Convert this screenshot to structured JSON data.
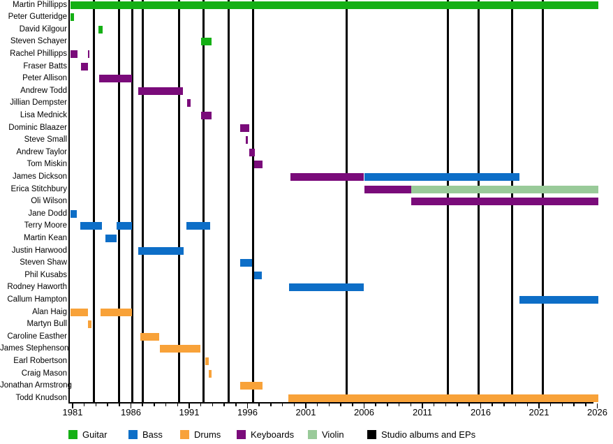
{
  "chart_data": {
    "type": "timeline",
    "description": "Band members timeline gantt chart",
    "x_axis": {
      "start": 1980.75,
      "end": 2026.2,
      "minor_tick_every_years": 1,
      "label_tick_every_years": 5,
      "label_years": [
        1981,
        1986,
        1991,
        1996,
        2001,
        2006,
        2011,
        2016,
        2021,
        2026
      ]
    },
    "legend": [
      {
        "id": "guitar",
        "label": "Guitar",
        "color": "#15b015"
      },
      {
        "id": "bass",
        "label": "Bass",
        "color": "#0d6ec7"
      },
      {
        "id": "drums",
        "label": "Drums",
        "color": "#f8a239"
      },
      {
        "id": "keyboards",
        "label": "Keyboards",
        "color": "#7a0b7a"
      },
      {
        "id": "violin",
        "label": "Violin",
        "color": "#99ca99"
      },
      {
        "id": "albums",
        "label": "Studio albums and EPs",
        "color": "#000000"
      }
    ],
    "album_release_lines": [
      1982.8,
      1985.0,
      1986.1,
      1987.0,
      1990.15,
      1992.25,
      1994.4,
      1996.45,
      2004.5,
      2013.2,
      2015.8,
      2018.7,
      2021.35
    ],
    "members": [
      {
        "name": "Martin Phillipps",
        "stints": [
          {
            "role": "guitar",
            "start": 1980.8,
            "end": 2026.1
          }
        ]
      },
      {
        "name": "Peter Gutteridge",
        "stints": [
          {
            "role": "guitar",
            "start": 1980.8,
            "end": 1981.1
          }
        ]
      },
      {
        "name": "David Kilgour",
        "stints": [
          {
            "role": "guitar",
            "start": 1983.2,
            "end": 1983.6
          }
        ]
      },
      {
        "name": "Steven Schayer",
        "stints": [
          {
            "role": "guitar",
            "start": 1992.0,
            "end": 1992.9
          }
        ]
      },
      {
        "name": "Rachel Phillipps",
        "stints": [
          {
            "role": "keyboards",
            "start": 1980.8,
            "end": 1981.4
          },
          {
            "role": "keyboards",
            "start": 1982.3,
            "end": 1982.45
          }
        ]
      },
      {
        "name": "Fraser Batts",
        "stints": [
          {
            "role": "keyboards",
            "start": 1981.7,
            "end": 1982.3
          }
        ]
      },
      {
        "name": "Peter Allison",
        "stints": [
          {
            "role": "keyboards",
            "start": 1983.3,
            "end": 1986.1
          }
        ]
      },
      {
        "name": "Andrew Todd",
        "stints": [
          {
            "role": "keyboards",
            "start": 1986.6,
            "end": 1990.45
          }
        ]
      },
      {
        "name": "Jillian Dempster",
        "stints": [
          {
            "role": "keyboards",
            "start": 1990.8,
            "end": 1991.1
          }
        ]
      },
      {
        "name": "Lisa Mednick",
        "stints": [
          {
            "role": "keyboards",
            "start": 1992.0,
            "end": 1992.9
          }
        ]
      },
      {
        "name": "Dominic Blaazer",
        "stints": [
          {
            "role": "keyboards",
            "start": 1995.4,
            "end": 1996.15
          }
        ]
      },
      {
        "name": "Steve Small",
        "stints": [
          {
            "role": "keyboards",
            "start": 1995.85,
            "end": 1996.05
          }
        ]
      },
      {
        "name": "Andrew Taylor",
        "stints": [
          {
            "role": "keyboards",
            "start": 1996.15,
            "end": 1996.6
          }
        ]
      },
      {
        "name": "Tom Miskin",
        "stints": [
          {
            "role": "keyboards",
            "start": 1996.55,
            "end": 1997.3
          }
        ]
      },
      {
        "name": "James Dickson",
        "stints": [
          {
            "role": "keyboards",
            "start": 1999.7,
            "end": 2006.0
          },
          {
            "role": "bass",
            "start": 2006.0,
            "end": 2019.3
          }
        ]
      },
      {
        "name": "Erica Stitchbury",
        "stints": [
          {
            "role": "keyboards",
            "start": 2006.0,
            "end": 2010.05
          },
          {
            "role": "violin",
            "start": 2010.05,
            "end": 2026.1
          }
        ]
      },
      {
        "name": "Oli Wilson",
        "stints": [
          {
            "role": "keyboards",
            "start": 2010.05,
            "end": 2026.1
          }
        ]
      },
      {
        "name": "Jane Dodd",
        "stints": [
          {
            "role": "bass",
            "start": 1980.8,
            "end": 1981.35
          }
        ]
      },
      {
        "name": "Terry Moore",
        "stints": [
          {
            "role": "bass",
            "start": 1981.65,
            "end": 1983.5
          },
          {
            "role": "bass",
            "start": 1984.8,
            "end": 1986.1
          },
          {
            "role": "bass",
            "start": 1990.75,
            "end": 1992.8
          }
        ]
      },
      {
        "name": "Martin Kean",
        "stints": [
          {
            "role": "bass",
            "start": 1983.8,
            "end": 1984.8
          }
        ]
      },
      {
        "name": "Justin Harwood",
        "stints": [
          {
            "role": "bass",
            "start": 1986.6,
            "end": 1990.5
          }
        ]
      },
      {
        "name": "Steven Shaw",
        "stints": [
          {
            "role": "bass",
            "start": 1995.4,
            "end": 1996.4
          }
        ]
      },
      {
        "name": "Phil Kusabs",
        "stints": [
          {
            "role": "bass",
            "start": 1996.55,
            "end": 1997.25
          }
        ]
      },
      {
        "name": "Rodney Haworth",
        "stints": [
          {
            "role": "bass",
            "start": 1999.55,
            "end": 2006.0
          }
        ]
      },
      {
        "name": "Callum Hampton",
        "stints": [
          {
            "role": "bass",
            "start": 2019.3,
            "end": 2026.1
          }
        ]
      },
      {
        "name": "Alan Haig",
        "stints": [
          {
            "role": "drums",
            "start": 1980.8,
            "end": 1982.3
          },
          {
            "role": "drums",
            "start": 1983.4,
            "end": 1986.1
          }
        ]
      },
      {
        "name": "Martyn Bull",
        "stints": [
          {
            "role": "drums",
            "start": 1982.3,
            "end": 1982.6
          }
        ]
      },
      {
        "name": "Caroline Easther",
        "stints": [
          {
            "role": "drums",
            "start": 1986.8,
            "end": 1988.4
          }
        ]
      },
      {
        "name": "James Stephenson",
        "stints": [
          {
            "role": "drums",
            "start": 1988.5,
            "end": 1991.95
          }
        ]
      },
      {
        "name": "Earl Robertson",
        "stints": [
          {
            "role": "drums",
            "start": 1992.35,
            "end": 1992.7
          }
        ]
      },
      {
        "name": "Craig Mason",
        "stints": [
          {
            "role": "drums",
            "start": 1992.65,
            "end": 1992.9
          }
        ]
      },
      {
        "name": "Jonathan Armstrong",
        "stints": [
          {
            "role": "drums",
            "start": 1995.4,
            "end": 1997.3
          }
        ]
      },
      {
        "name": "Todd Knudson",
        "stints": [
          {
            "role": "drums",
            "start": 1999.5,
            "end": 2026.1
          }
        ]
      }
    ]
  }
}
